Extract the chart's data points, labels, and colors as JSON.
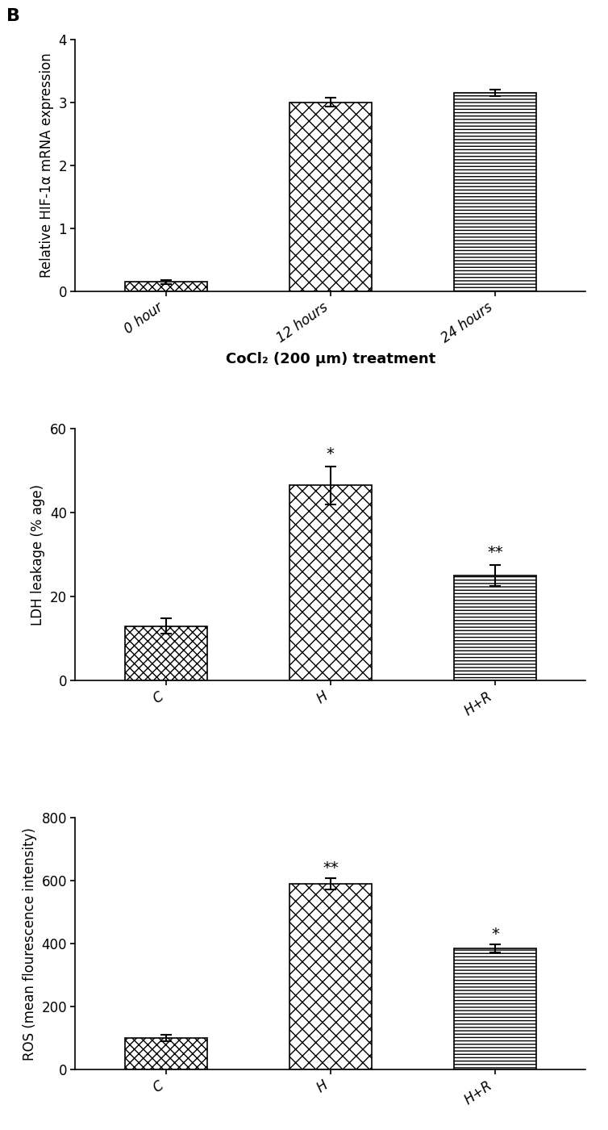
{
  "chart1": {
    "categories": [
      "0 hour",
      "12 hours",
      "24 hours"
    ],
    "values": [
      0.15,
      3.0,
      3.15
    ],
    "errors": [
      0.03,
      0.07,
      0.05
    ],
    "ylabel": "Relative HIF-1α mRNA expression",
    "xlabel": "CoCl₂ (200 μm) treatment",
    "ylim": [
      0,
      4
    ],
    "yticks": [
      0,
      1,
      2,
      3,
      4
    ],
    "patterns": [
      "small_check",
      "large_check",
      "horizontal_lines"
    ]
  },
  "chart2": {
    "categories": [
      "C",
      "H",
      "H+R"
    ],
    "values": [
      13.0,
      46.5,
      25.0
    ],
    "errors": [
      1.8,
      4.5,
      2.5
    ],
    "ylabel": "LDH leakage (% age)",
    "ylim": [
      0,
      60
    ],
    "yticks": [
      0,
      20,
      40,
      60
    ],
    "significance": [
      "",
      "*",
      "**"
    ],
    "patterns": [
      "small_check",
      "large_check",
      "horizontal_lines"
    ]
  },
  "chart3": {
    "categories": [
      "C",
      "H",
      "H+R"
    ],
    "values": [
      100,
      590,
      385
    ],
    "errors": [
      10,
      18,
      12
    ],
    "ylabel": "ROS (mean flourescence intensity)",
    "ylim": [
      0,
      800
    ],
    "yticks": [
      0,
      200,
      400,
      600,
      800
    ],
    "significance": [
      "",
      "**",
      "*"
    ],
    "patterns": [
      "small_check",
      "large_check",
      "horizontal_lines"
    ]
  },
  "panel_label": "B",
  "bar_width": 0.5,
  "background_color": "#ffffff",
  "font_size_ylabel": 12,
  "font_size_xlabel": 13,
  "font_size_ticks": 12,
  "font_size_panel": 16,
  "font_size_sig": 14
}
